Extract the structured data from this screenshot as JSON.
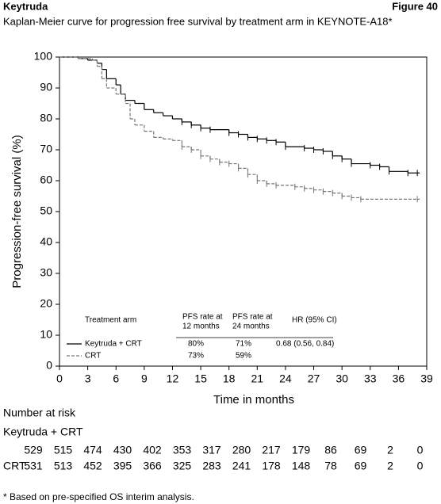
{
  "header": {
    "title": "Keytruda",
    "figure": "Figure 40"
  },
  "chart_data": {
    "type": "line",
    "step": true,
    "title": "Kaplan-Meier curve for progression free survival by treatment arm in KEYNOTE-A18*",
    "xlabel": "Time in months",
    "ylabel": "Progression-free survival (%)",
    "xlim": [
      0,
      39
    ],
    "ylim": [
      0,
      100
    ],
    "xticks": [
      0,
      3,
      6,
      9,
      12,
      15,
      18,
      21,
      24,
      27,
      30,
      33,
      36,
      39
    ],
    "yticks": [
      0,
      10,
      20,
      30,
      40,
      50,
      60,
      70,
      80,
      90,
      100
    ],
    "series": [
      {
        "name": "Keytruda + CRT",
        "color": "#000000",
        "line_style": "solid",
        "x": [
          0,
          2,
          3,
          4,
          4.5,
          5,
          6,
          6.5,
          7,
          8,
          9,
          10,
          11,
          12,
          13,
          14,
          15,
          16,
          18,
          19,
          20,
          21,
          22,
          23,
          24,
          26,
          27,
          28,
          29,
          30,
          31,
          33,
          34,
          35,
          37,
          38
        ],
        "values": [
          100,
          99.5,
          99,
          98,
          96,
          93,
          91,
          88,
          86,
          85,
          83,
          82,
          81,
          80,
          79,
          78,
          77,
          76.5,
          75.5,
          75,
          74,
          73.5,
          73,
          72.5,
          71,
          70.5,
          70,
          69.5,
          68,
          67,
          65.5,
          65,
          64.5,
          63,
          62.5,
          62.5
        ]
      },
      {
        "name": "CRT",
        "color": "#777777",
        "line_style": "dashed",
        "x": [
          0,
          2,
          3.5,
          4,
          4.5,
          5,
          6,
          7,
          7.5,
          8,
          9,
          10,
          11,
          12,
          13,
          14,
          15,
          16,
          17,
          18,
          19,
          20,
          21,
          22,
          23,
          25,
          26,
          27,
          28,
          29,
          30,
          31,
          32,
          38
        ],
        "values": [
          100,
          99.5,
          99,
          97,
          93,
          90,
          88,
          85,
          80,
          78,
          76,
          74,
          73.5,
          73,
          71,
          70,
          68,
          67,
          66,
          65.5,
          64,
          62,
          60,
          59,
          58.5,
          58,
          57.5,
          57,
          56.5,
          56,
          55,
          54.5,
          54,
          54
        ]
      }
    ],
    "summary_table": {
      "headers": [
        [
          "Treatment arm"
        ],
        [
          "PFS rate at",
          "12 months"
        ],
        [
          "PFS rate at",
          "24 months"
        ],
        [
          "HR (95% CI)"
        ]
      ],
      "rows": [
        [
          "80%",
          "71%",
          "0.68 (0.56, 0.84)"
        ],
        [
          "73%",
          "59%"
        ]
      ]
    }
  },
  "risk_table": {
    "title": "Number at risk",
    "rows": [
      {
        "name": "Keytruda + CRT",
        "values": [
          529,
          515,
          474,
          430,
          402,
          353,
          317,
          280,
          217,
          179,
          86,
          69,
          2,
          0
        ]
      },
      {
        "name": "CRT",
        "values": [
          531,
          513,
          452,
          395,
          366,
          325,
          283,
          241,
          178,
          148,
          78,
          69,
          2,
          0
        ]
      }
    ]
  },
  "footnote": "* Based on pre-specified OS interim analysis."
}
